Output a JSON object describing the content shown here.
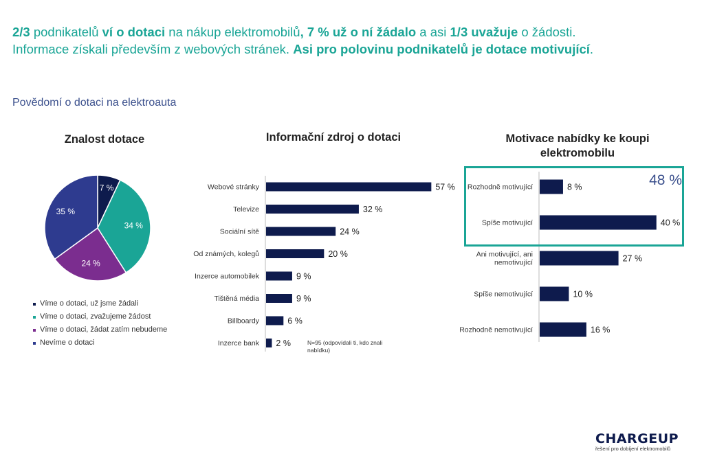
{
  "headline": {
    "l1_a": "2/3",
    "l1_b": " podnikatelů ",
    "l1_c": "ví o dotaci",
    "l1_d": " na nákup elektromobilů",
    "l1_e": ", 7 % už o ní žádalo",
    "l1_f": " a asi ",
    "l1_g": "1/3 uvažuje",
    "l1_h": " o žádosti.",
    "l2_a": "Informace získali především z webových stránek. ",
    "l2_b": "Asi pro polovinu podnikatelů je dotace motivující",
    "l2_c": "."
  },
  "subtitle": "Povědomí o dotaci na elektroauta",
  "note": "N=95 (odpovídali ti, kdo znali nabídku)",
  "highlight_value": "48 %",
  "logo": {
    "name": "CHARGEUP",
    "tagline": "řešení pro dobíjení elektromobilů"
  },
  "colors": {
    "navy": "#0e1b4d",
    "teal": "#1aa596",
    "purple": "#7b2d8f",
    "blue": "#2e3b8f"
  },
  "chart_data": [
    {
      "type": "pie",
      "title": "Znalost dotace",
      "series": [
        {
          "name": "Víme o dotaci, už jsme žádali",
          "value": 7,
          "label": "7 %",
          "color": "#0e1b4d"
        },
        {
          "name": "Víme o dotaci, zvažujeme žádost",
          "value": 34,
          "label": "34 %",
          "color": "#1aa596"
        },
        {
          "name": "Víme o dotaci, žádat zatím nebudeme",
          "value": 24,
          "label": "24 %",
          "color": "#7b2d8f"
        },
        {
          "name": "Nevíme o dotaci",
          "value": 35,
          "label": "35 %",
          "color": "#2e3b8f"
        }
      ]
    },
    {
      "type": "bar",
      "orientation": "horizontal",
      "title": "Informační zdroj o dotaci",
      "categories": [
        "Webové stránky",
        "Televize",
        "Sociální sítě",
        "Od známých, kolegů",
        "Inzerce automobilek",
        "Tištěná média",
        "Billboardy",
        "Inzerce bank"
      ],
      "values": [
        57,
        32,
        24,
        20,
        9,
        9,
        6,
        2
      ],
      "labels": [
        "57 %",
        "32 %",
        "24 %",
        "20 %",
        "9 %",
        "9 %",
        "6 %",
        "2 %"
      ],
      "xlim": [
        0,
        60
      ]
    },
    {
      "type": "bar",
      "orientation": "horizontal",
      "title": "Motivace nabídky ke koupi elektromobilu",
      "categories": [
        "Rozhodně motivující",
        "Spíše motivující",
        "Ani motivující, ani nemotivující",
        "Spíše nemotivující",
        "Rozhodně nemotivující"
      ],
      "category_lines": [
        [
          "Rozhodně motivující"
        ],
        [
          "Spíše motivující"
        ],
        [
          "Ani motivující, ani",
          "nemotivující"
        ],
        [
          "Spíše nemotivující"
        ],
        [
          "Rozhodně nemotivující"
        ]
      ],
      "values": [
        8,
        40,
        27,
        10,
        16
      ],
      "labels": [
        "8 %",
        "40 %",
        "27 %",
        "10 %",
        "16 %"
      ],
      "xlim": [
        0,
        45
      ]
    }
  ]
}
